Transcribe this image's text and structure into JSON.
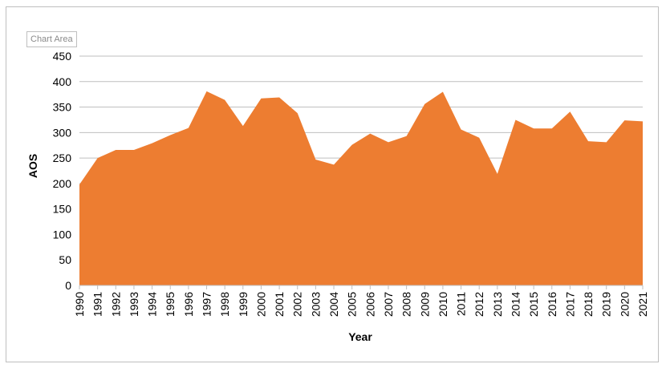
{
  "tooltip": "Chart Area",
  "chart_data": {
    "type": "area",
    "xlabel": "Year",
    "ylabel": "AOS",
    "ylim": [
      0,
      450
    ],
    "yticks": [
      0,
      50,
      100,
      150,
      200,
      250,
      300,
      350,
      400,
      450
    ],
    "grid": true,
    "fill_color": "#ED7D31",
    "categories": [
      "1990",
      "1991",
      "1992",
      "1993",
      "1994",
      "1995",
      "1996",
      "1997",
      "1998",
      "1999",
      "2000",
      "2001",
      "2002",
      "2003",
      "2004",
      "2005",
      "2006",
      "2007",
      "2008",
      "2009",
      "2010",
      "2011",
      "2012",
      "2013",
      "2014",
      "2015",
      "2016",
      "2017",
      "2018",
      "2019",
      "2020",
      "2021"
    ],
    "values": [
      198,
      250,
      266,
      266,
      279,
      295,
      309,
      381,
      364,
      313,
      367,
      369,
      338,
      247,
      237,
      276,
      298,
      281,
      293,
      356,
      380,
      306,
      290,
      219,
      325,
      308,
      308,
      341,
      283,
      281,
      324,
      322
    ]
  }
}
